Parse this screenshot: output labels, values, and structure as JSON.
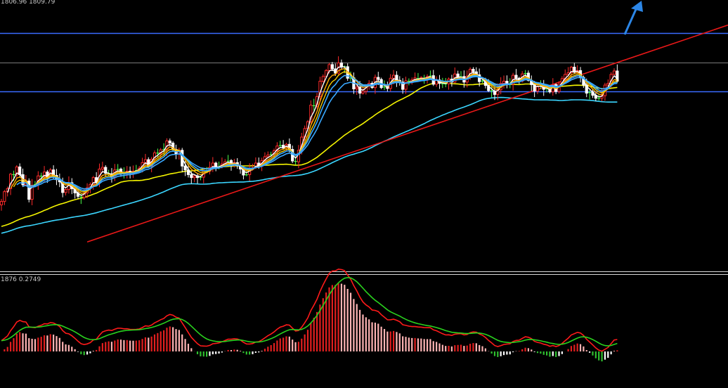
{
  "main_panel": {
    "label": "1806.96 1809.79"
  },
  "sub_panel": {
    "label": "1876 0.2749"
  },
  "colors": {
    "background": "#000000",
    "candle_up": "#ff2a2a",
    "candle_down": "#ffffff",
    "candle_star": "#4cff4c",
    "horizontal_line": "#3a6bff",
    "mid_line": "#7a7a7a",
    "trendline": "#e81818",
    "ma_fast_1": "#ffffff",
    "ma_fast_2": "#ffa800",
    "ma_fast_3": "#ffd400",
    "ma_fast_4": "#39a8ff",
    "ma_slow_yellow": "#f4f400",
    "ma_slow_cyan": "#3bd6ff",
    "macd_line": "#ff1a1a",
    "signal_line": "#2ad21e",
    "hist_pos_strong": "#e21f1f",
    "hist_pos_weak": "#ffb4b4",
    "hist_neg_strong": "#2fbf2f",
    "hist_neg_weak": "#ffffff",
    "arrow": "#2c86e6"
  },
  "chart_data": [
    {
      "type": "candlestick",
      "panel": "price",
      "horizontal_lines": [
        1823.5,
        1816.5,
        1809.8
      ],
      "trendline": {
        "from": [
          28,
          1774.5
        ],
        "to": [
          176,
          1810.5
        ]
      },
      "arrow": "up-right",
      "closes": [
        1784.0,
        1786.3,
        1787.0,
        1790.4,
        1790.2,
        1792.1,
        1790.3,
        1787.9,
        1788.8,
        1784.5,
        1787.8,
        1788.1,
        1790.0,
        1789.9,
        1790.9,
        1789.7,
        1791.4,
        1790.1,
        1789.1,
        1788.6,
        1786.1,
        1786.8,
        1788.4,
        1787.0,
        1786.0,
        1785.2,
        1784.9,
        1786.0,
        1787.2,
        1788.0,
        1789.6,
        1788.4,
        1791.6,
        1792.0,
        1790.6,
        1790.5,
        1789.7,
        1791.4,
        1791.6,
        1790.8,
        1790.5,
        1791.1,
        1790.6,
        1791.1,
        1791.4,
        1791.8,
        1793.1,
        1793.8,
        1792.3,
        1793.9,
        1795.4,
        1795.3,
        1796.1,
        1796.2,
        1798.2,
        1797.7,
        1796.2,
        1795.1,
        1796.0,
        1792.3,
        1791.4,
        1790.3,
        1789.6,
        1790.0,
        1789.6,
        1789.7,
        1791.2,
        1791.1,
        1792.0,
        1793.0,
        1791.9,
        1792.2,
        1792.8,
        1793.3,
        1793.6,
        1792.5,
        1793.1,
        1792.4,
        1791.6,
        1790.2,
        1790.3,
        1791.5,
        1791.9,
        1793.0,
        1792.3,
        1793.6,
        1794.5,
        1794.9,
        1795.0,
        1795.9,
        1797.0,
        1797.2,
        1796.5,
        1797.4,
        1796.2,
        1793.5,
        1793.3,
        1796.0,
        1799.1,
        1801.1,
        1802.7,
        1806.6,
        1806.3,
        1808.6,
        1812.2,
        1813.3,
        1814.7,
        1816.1,
        1815.1,
        1814.1,
        1816.5,
        1815.6,
        1815.6,
        1812.9,
        1813.0,
        1810.4,
        1810.8,
        1809.4,
        1809.8,
        1811.2,
        1811.7,
        1810.7,
        1813.1,
        1812.6,
        1810.7,
        1811.0,
        1810.5,
        1812.9,
        1813.6,
        1812.4,
        1812.0,
        1810.3,
        1812.3,
        1812.1,
        1812.5,
        1813.0,
        1812.7,
        1813.1,
        1812.8,
        1813.3,
        1813.5,
        1811.5,
        1812.5,
        1811.7,
        1811.5,
        1811.6,
        1812.7,
        1812.0,
        1813.9,
        1813.2,
        1813.3,
        1812.0,
        1813.4,
        1815.0,
        1814.4,
        1813.7,
        1812.1,
        1812.4,
        1811.2,
        1810.0,
        1809.9,
        1809.1,
        1810.2,
        1811.7,
        1812.2,
        1811.7,
        1811.5,
        1813.6,
        1812.9,
        1812.2,
        1813.9,
        1814.1,
        1812.4,
        1811.4,
        1809.9,
        1810.9,
        1811.1,
        1810.3,
        1810.6,
        1809.7,
        1811.4,
        1809.8,
        1811.5,
        1812.8,
        1813.8,
        1814.2,
        1815.5,
        1814.3,
        1814.7,
        1813.1,
        1811.3,
        1809.4,
        1809.7,
        1808.9,
        1808.2,
        1808.2,
        1808.8,
        1811.3,
        1811.7,
        1813.8,
        1814.6,
        1812.2
      ],
      "moving_averages": [
        "ma_fast_1",
        "ma_fast_2",
        "ma_fast_3",
        "ma_fast_4",
        "ma_slow_yellow",
        "ma_slow_cyan"
      ]
    },
    {
      "type": "macd",
      "panel": "oscillator",
      "series": [
        "macd_line",
        "signal_line",
        "histogram"
      ]
    }
  ]
}
